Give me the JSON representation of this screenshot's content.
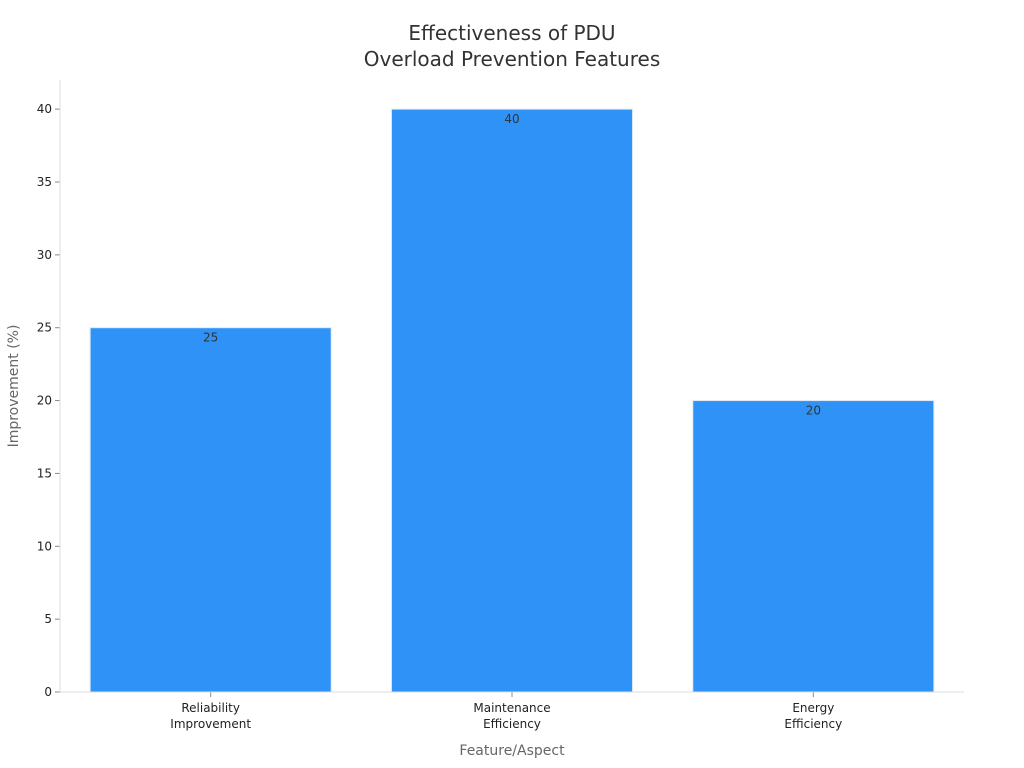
{
  "chart_data": {
    "type": "bar",
    "title_lines": [
      "Effectiveness of PDU",
      "Overload Prevention Features"
    ],
    "xlabel": "Feature/Aspect",
    "ylabel": "Improvement (%)",
    "categories": [
      [
        "Reliability",
        "Improvement"
      ],
      [
        "Maintenance",
        "Efficiency"
      ],
      [
        "Energy",
        "Efficiency"
      ]
    ],
    "values": [
      25,
      40,
      20
    ],
    "data_labels": [
      "25",
      "40",
      "20"
    ],
    "ylim": [
      0,
      42
    ],
    "yticks": [
      0,
      5,
      10,
      15,
      20,
      25,
      30,
      35,
      40
    ],
    "bar_color": "#2f92f7",
    "grid": false,
    "legend": "none"
  }
}
